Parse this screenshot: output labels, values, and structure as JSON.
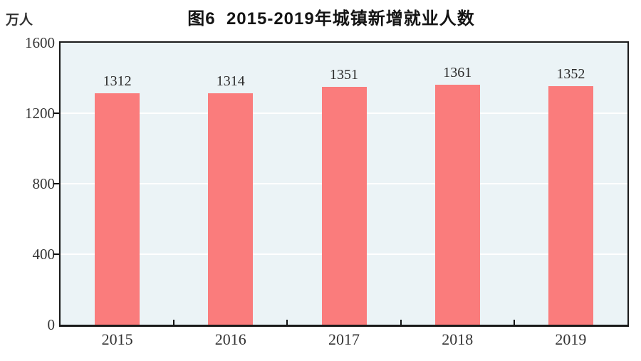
{
  "figure": {
    "title": "图6  2015-2019年城镇新增就业人数",
    "unit_label": "万人"
  },
  "chart_data": {
    "type": "bar",
    "title": "图6  2015-2019年城镇新增就业人数",
    "ylabel": "万人",
    "xlabel": "",
    "categories": [
      "2015",
      "2016",
      "2017",
      "2018",
      "2019"
    ],
    "values": [
      1312,
      1314,
      1351,
      1361,
      1352
    ],
    "ylim": [
      0,
      1600
    ],
    "yticks": [
      0,
      400,
      800,
      1200,
      1600
    ],
    "grid": true,
    "legend": "none",
    "bar_color": "#FA7C7C",
    "plot_background": "#EBF3F6",
    "gridline_color": "#FFFFFF",
    "frame_color": "#1A1A1A",
    "label_color": "#333333"
  }
}
